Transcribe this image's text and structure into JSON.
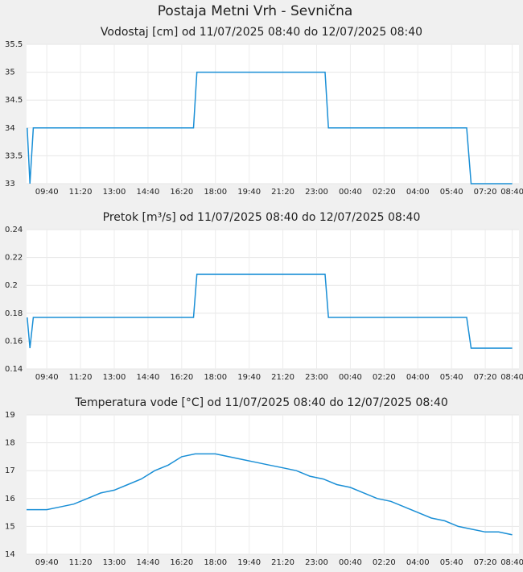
{
  "page_title": "Postaja Metni Vrh - Sevnična",
  "chart_data": [
    {
      "type": "line",
      "title": "Vodostaj [cm] od 11/07/2025 08:40 do 12/07/2025 08:40",
      "color": "#1a8fd6",
      "grid": true,
      "xlim": [
        0,
        1460
      ],
      "ylim": [
        33,
        35.5
      ],
      "yticks": [
        33,
        33.5,
        34,
        34.5,
        35,
        35.5
      ],
      "xticks": [
        {
          "value": 60,
          "label": "09:40"
        },
        {
          "value": 160,
          "label": "11:20"
        },
        {
          "value": 260,
          "label": "13:00"
        },
        {
          "value": 360,
          "label": "14:40"
        },
        {
          "value": 460,
          "label": "16:20"
        },
        {
          "value": 560,
          "label": "18:00"
        },
        {
          "value": 660,
          "label": "19:40"
        },
        {
          "value": 760,
          "label": "21:20"
        },
        {
          "value": 860,
          "label": "23:00"
        },
        {
          "value": 960,
          "label": "00:40"
        },
        {
          "value": 1060,
          "label": "02:20"
        },
        {
          "value": 1160,
          "label": "04:00"
        },
        {
          "value": 1260,
          "label": "05:40"
        },
        {
          "value": 1360,
          "label": "07:20"
        },
        {
          "value": 1440,
          "label": "08:40"
        }
      ],
      "x": [
        2,
        10,
        20,
        495,
        505,
        885,
        895,
        1305,
        1318,
        1440
      ],
      "values": [
        34,
        33,
        34,
        34,
        35,
        35,
        34,
        34,
        33,
        33
      ]
    },
    {
      "type": "line",
      "title": "Pretok [m³/s] od 11/07/2025 08:40 do 12/07/2025 08:40",
      "color": "#1a8fd6",
      "grid": true,
      "xlim": [
        0,
        1460
      ],
      "ylim": [
        0.14,
        0.24
      ],
      "yticks": [
        0.14,
        0.16,
        0.18,
        0.2,
        0.22,
        0.24
      ],
      "xticks": [
        {
          "value": 60,
          "label": "09:40"
        },
        {
          "value": 160,
          "label": "11:20"
        },
        {
          "value": 260,
          "label": "13:00"
        },
        {
          "value": 360,
          "label": "14:40"
        },
        {
          "value": 460,
          "label": "16:20"
        },
        {
          "value": 560,
          "label": "18:00"
        },
        {
          "value": 660,
          "label": "19:40"
        },
        {
          "value": 760,
          "label": "21:20"
        },
        {
          "value": 860,
          "label": "23:00"
        },
        {
          "value": 960,
          "label": "00:40"
        },
        {
          "value": 1060,
          "label": "02:20"
        },
        {
          "value": 1160,
          "label": "04:00"
        },
        {
          "value": 1260,
          "label": "05:40"
        },
        {
          "value": 1360,
          "label": "07:20"
        },
        {
          "value": 1440,
          "label": "08:40"
        }
      ],
      "x": [
        2,
        10,
        20,
        495,
        505,
        885,
        895,
        1305,
        1318,
        1440
      ],
      "values": [
        0.177,
        0.155,
        0.177,
        0.177,
        0.208,
        0.208,
        0.177,
        0.177,
        0.155,
        0.155
      ]
    },
    {
      "type": "line",
      "title": "Temperatura vode [°C] od 11/07/2025 08:40 do 12/07/2025 08:40",
      "color": "#1a8fd6",
      "grid": true,
      "xlim": [
        0,
        1460
      ],
      "ylim": [
        14,
        19
      ],
      "yticks": [
        14,
        15,
        16,
        17,
        18,
        19
      ],
      "xticks": [
        {
          "value": 60,
          "label": "09:40"
        },
        {
          "value": 160,
          "label": "11:20"
        },
        {
          "value": 260,
          "label": "13:00"
        },
        {
          "value": 360,
          "label": "14:40"
        },
        {
          "value": 460,
          "label": "16:20"
        },
        {
          "value": 560,
          "label": "18:00"
        },
        {
          "value": 660,
          "label": "19:40"
        },
        {
          "value": 760,
          "label": "21:20"
        },
        {
          "value": 860,
          "label": "23:00"
        },
        {
          "value": 960,
          "label": "00:40"
        },
        {
          "value": 1060,
          "label": "02:20"
        },
        {
          "value": 1160,
          "label": "04:00"
        },
        {
          "value": 1260,
          "label": "05:40"
        },
        {
          "value": 1360,
          "label": "07:20"
        },
        {
          "value": 1440,
          "label": "08:40"
        }
      ],
      "x": [
        0,
        60,
        100,
        140,
        180,
        220,
        260,
        300,
        340,
        380,
        420,
        460,
        500,
        560,
        600,
        640,
        680,
        720,
        760,
        800,
        840,
        880,
        920,
        960,
        1000,
        1040,
        1080,
        1120,
        1160,
        1200,
        1240,
        1280,
        1320,
        1360,
        1400,
        1440
      ],
      "values": [
        15.6,
        15.6,
        15.7,
        15.8,
        16.0,
        16.2,
        16.3,
        16.5,
        16.7,
        17.0,
        17.2,
        17.5,
        17.6,
        17.6,
        17.5,
        17.4,
        17.3,
        17.2,
        17.1,
        17.0,
        16.8,
        16.7,
        16.5,
        16.4,
        16.2,
        16.0,
        15.9,
        15.7,
        15.5,
        15.3,
        15.2,
        15.0,
        14.9,
        14.8,
        14.8,
        14.7
      ]
    }
  ]
}
